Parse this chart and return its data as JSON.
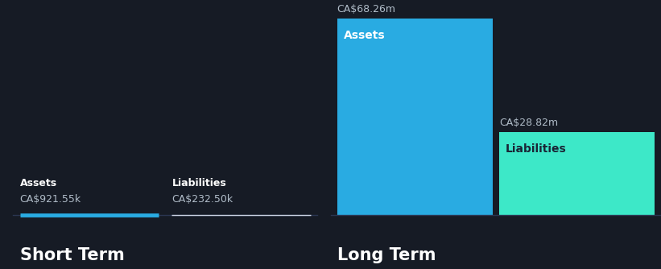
{
  "bg_color": "#161b25",
  "short_term": {
    "assets_label": "Assets",
    "assets_value": "CA$921.55k",
    "liabilities_label": "Liabilities",
    "liabilities_value": "CA$232.50k",
    "section_label": "Short Term",
    "assets_line_color": "#29abe2",
    "liabilities_line_color": "#c8d0e0"
  },
  "long_term": {
    "assets_label": "Assets",
    "assets_value": "CA$68.26m",
    "liabilities_label": "Liabilities",
    "liabilities_value": "CA$28.82m",
    "section_label": "Long Term",
    "assets_bar_color": "#29abe2",
    "liabilities_bar_color": "#3de8c8",
    "assets_bar_height": 68.26,
    "liabilities_bar_height": 28.82
  },
  "text_color_white": "#ffffff",
  "text_color_dark": "#1a2535",
  "value_color": "#b0bcc8",
  "section_label_fontsize": 15,
  "bar_label_fontsize": 10,
  "value_fontsize": 9,
  "st_label_fontsize": 9
}
